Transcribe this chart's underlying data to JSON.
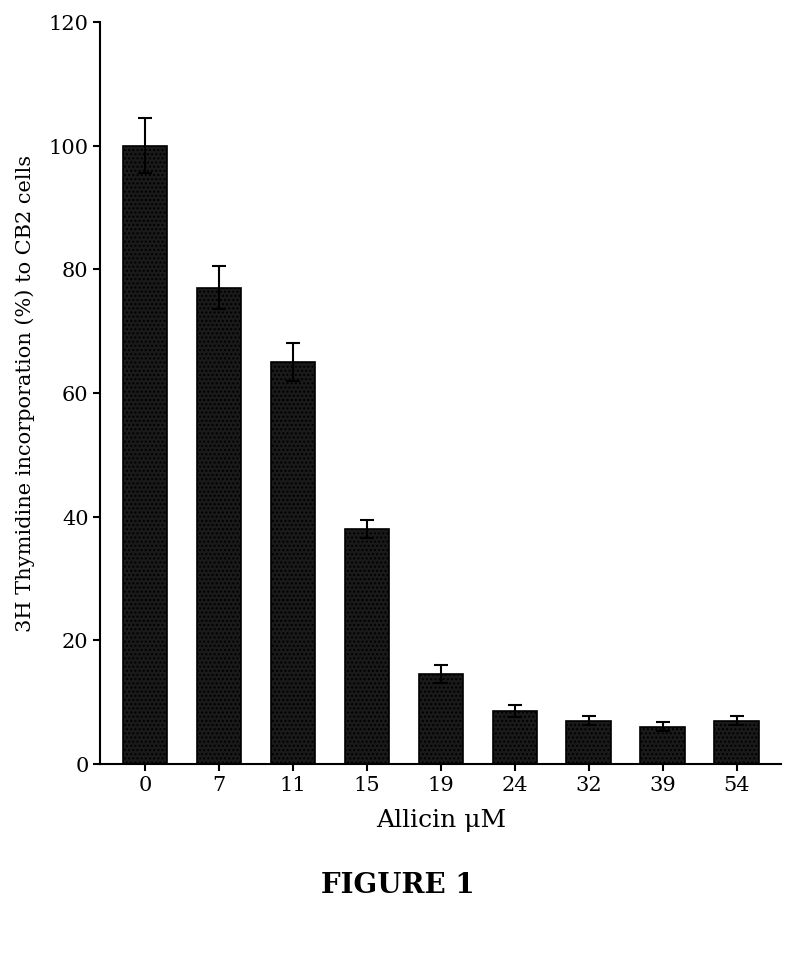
{
  "categories": [
    "0",
    "7",
    "11",
    "15",
    "19",
    "24",
    "32",
    "39",
    "54"
  ],
  "values": [
    100,
    77,
    65,
    38,
    14.5,
    8.5,
    7,
    6,
    7
  ],
  "errors": [
    4.5,
    3.5,
    3,
    1.5,
    1.5,
    1,
    0.8,
    0.7,
    0.8
  ],
  "xlabel": "Allicin μM",
  "ylabel": "3H Thymidine incorporation (%) to CB2 cells",
  "ylim": [
    0,
    120
  ],
  "yticks": [
    0,
    20,
    40,
    60,
    80,
    100,
    120
  ],
  "figure_label": "FIGURE 1",
  "bar_color": "#2a2a2a",
  "bar_hatch": ".",
  "background_color": "#ffffff",
  "title_fontsize": 18,
  "label_fontsize": 16,
  "tick_fontsize": 15,
  "bar_width": 0.6
}
